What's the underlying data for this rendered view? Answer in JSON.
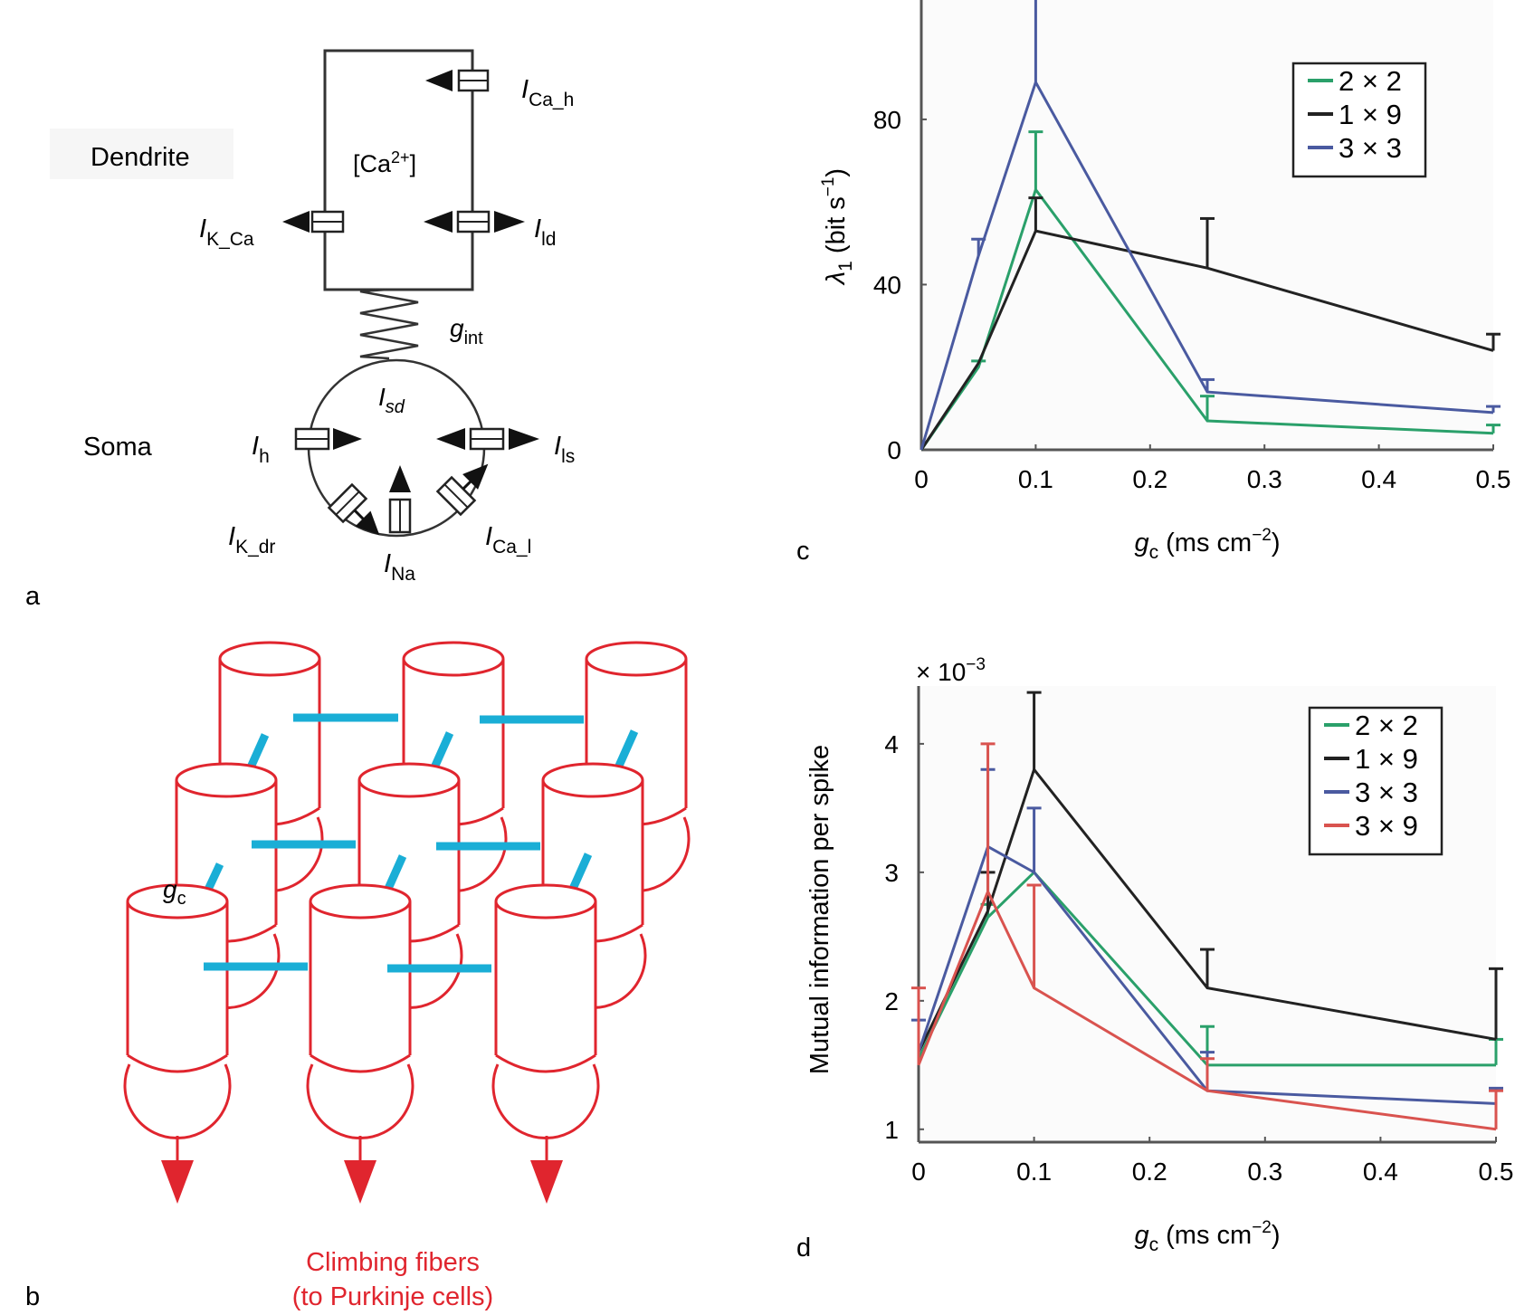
{
  "panel_a": {
    "label": "a",
    "dendrite_label": "Dendrite",
    "soma_label": "Soma",
    "calcium_label": "[Ca",
    "calcium_sup": "2+",
    "calcium_close": "]",
    "coupling_label": "g",
    "coupling_sub": "int",
    "soma_current": "I",
    "soma_current_sub": "sd",
    "currents": [
      {
        "name": "I",
        "sub": "Ca_h"
      },
      {
        "name": "I",
        "sub": "K_Ca"
      },
      {
        "name": "I",
        "sub": "ld"
      },
      {
        "name": "I",
        "sub": "h"
      },
      {
        "name": "I",
        "sub": "ls"
      },
      {
        "name": "I",
        "sub": "K_dr"
      },
      {
        "name": "I",
        "sub": "Na"
      },
      {
        "name": "I",
        "sub": "Ca_l"
      }
    ]
  },
  "panel_b": {
    "label": "b",
    "coupling_label": "g",
    "coupling_sub": "c",
    "caption_line1": "Climbing fibers",
    "caption_line2": "(to Purkinje cells)",
    "cell_color": "#e0252e",
    "coupling_color": "#1aaed6"
  },
  "chart_data": [
    {
      "panel": "c",
      "type": "line",
      "title": "",
      "xlabel": "g",
      "xlabel_sub": "c",
      "xlabel_units": " (ms cm",
      "xlabel_sup": "−2",
      "xlabel_close": ")",
      "ylabel": "λ",
      "ylabel_sub": "1",
      "ylabel_units": " (bit s",
      "ylabel_sup": "−1",
      "ylabel_close": ")",
      "xlim": [
        0,
        0.5
      ],
      "ylim": [
        0,
        110
      ],
      "xticks": [
        "0",
        "0.1",
        "0.2",
        "0.3",
        "0.4",
        "0.5"
      ],
      "xtick_values": [
        0,
        0.1,
        0.2,
        0.3,
        0.4,
        0.5
      ],
      "yticks": [
        "0",
        "40",
        "80"
      ],
      "ytick_values": [
        0,
        40,
        80
      ],
      "legend_position": "top-right",
      "grid": false,
      "series": [
        {
          "name": "2 × 2",
          "color": "#2aa06a",
          "x": [
            0,
            0.05,
            0.1,
            0.25,
            0.5
          ],
          "y": [
            0,
            20,
            63,
            7,
            4
          ],
          "err": [
            0,
            1.5,
            14,
            6,
            2
          ]
        },
        {
          "name": "1 × 9",
          "color": "#222222",
          "x": [
            0,
            0.05,
            0.1,
            0.25,
            0.5
          ],
          "y": [
            0,
            21,
            53,
            44,
            24
          ],
          "err": [
            0,
            0,
            8,
            12,
            4
          ]
        },
        {
          "name": "3 × 3",
          "color": "#4a5aa0",
          "x": [
            0,
            0.05,
            0.1,
            0.25,
            0.5
          ],
          "y": [
            0,
            47,
            89,
            14,
            9
          ],
          "err": [
            0,
            4,
            32,
            3,
            1.5
          ]
        }
      ]
    },
    {
      "panel": "d",
      "type": "line",
      "title": "",
      "scale_label": "× 10",
      "scale_sup": "−3",
      "xlabel": "g",
      "xlabel_sub": "c",
      "xlabel_units": " (ms cm",
      "xlabel_sup": "−2",
      "xlabel_close": ")",
      "ylabel": "Mutual information per spike",
      "xlim": [
        0,
        0.5
      ],
      "ylim": [
        0.9,
        4.45
      ],
      "xticks": [
        "0",
        "0.1",
        "0.2",
        "0.3",
        "0.4",
        "0.5"
      ],
      "xtick_values": [
        0,
        0.1,
        0.2,
        0.3,
        0.4,
        0.5
      ],
      "yticks": [
        "1",
        "2",
        "3",
        "4"
      ],
      "ytick_values": [
        1,
        2,
        3,
        4
      ],
      "legend_position": "top-right",
      "grid": false,
      "series": [
        {
          "name": "2 × 2",
          "color": "#2aa06a",
          "x": [
            0,
            0.06,
            0.1,
            0.25,
            0.5
          ],
          "y": [
            1.55,
            2.65,
            3.0,
            1.5,
            1.5
          ],
          "err": [
            0,
            0.1,
            0,
            0.3,
            0.2
          ]
        },
        {
          "name": "1 × 9",
          "color": "#222222",
          "x": [
            0,
            0.06,
            0.1,
            0.25,
            0.5
          ],
          "y": [
            1.6,
            2.7,
            3.8,
            2.1,
            1.7
          ],
          "err": [
            0,
            0.3,
            0.6,
            0.3,
            0.55
          ]
        },
        {
          "name": "3 × 3",
          "color": "#4a5aa0",
          "x": [
            0,
            0.06,
            0.1,
            0.25,
            0.5
          ],
          "y": [
            1.6,
            3.2,
            3.0,
            1.3,
            1.2
          ],
          "err": [
            0.25,
            0.6,
            0.5,
            0.3,
            0.12
          ]
        },
        {
          "name": "3 × 9",
          "color": "#d9534f",
          "x": [
            0,
            0.06,
            0.1,
            0.25,
            0.5
          ],
          "y": [
            1.5,
            2.85,
            2.1,
            1.3,
            1.0
          ],
          "err": [
            0.6,
            1.15,
            0.8,
            0.25,
            0.3
          ]
        }
      ]
    }
  ],
  "panel_labels": {
    "c": "c",
    "d": "d"
  }
}
